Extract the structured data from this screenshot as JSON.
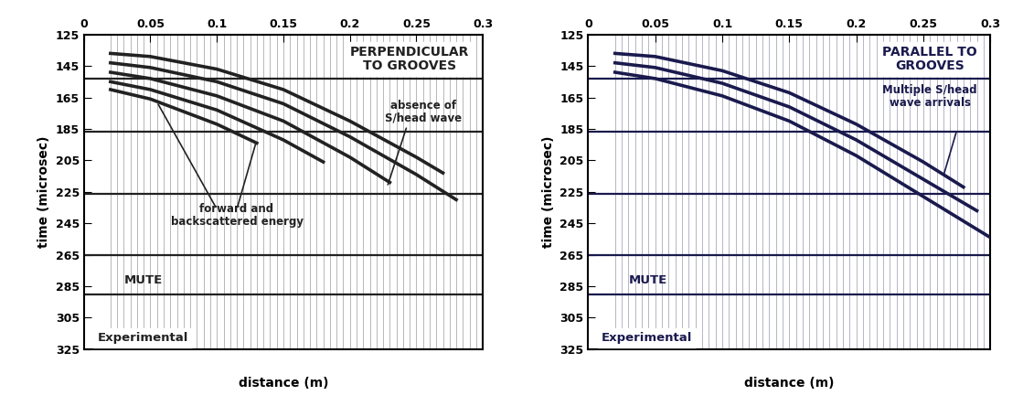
{
  "chart_data": [
    {
      "type": "line",
      "xlabel": "distance (m)",
      "ylabel": "time (microsec)",
      "xlim": [
        0,
        0.3
      ],
      "xticks": [
        0,
        0.05,
        0.1,
        0.15,
        0.2,
        0.25,
        0.3
      ],
      "ylim": [
        325,
        125
      ],
      "yticks": [
        125,
        145,
        165,
        185,
        205,
        225,
        245,
        265,
        285,
        305,
        325
      ],
      "color": "#222222",
      "traces": [
        0.02,
        0.025,
        0.03,
        0.035,
        0.04,
        0.045,
        0.05,
        0.055,
        0.06,
        0.065,
        0.07,
        0.075,
        0.08,
        0.085,
        0.09,
        0.095,
        0.1,
        0.105,
        0.11,
        0.115,
        0.12,
        0.125,
        0.13,
        0.135,
        0.14,
        0.145,
        0.15,
        0.155,
        0.16,
        0.165,
        0.17,
        0.175,
        0.18,
        0.185,
        0.19,
        0.195,
        0.2,
        0.205,
        0.21,
        0.215,
        0.22,
        0.225,
        0.23,
        0.235,
        0.24,
        0.245,
        0.25,
        0.255,
        0.26,
        0.265,
        0.27,
        0.275,
        0.28,
        0.285,
        0.29,
        0.295,
        0.3
      ],
      "reference_lines": [
        153,
        187,
        226,
        265,
        290
      ],
      "series": [
        {
          "x": [
            0.02,
            0.05,
            0.1,
            0.15,
            0.2,
            0.25,
            0.27
          ],
          "values": [
            137,
            139,
            147,
            160,
            180,
            203,
            213
          ]
        },
        {
          "x": [
            0.02,
            0.05,
            0.1,
            0.15,
            0.2,
            0.25,
            0.28
          ],
          "values": [
            143,
            146,
            155,
            169,
            190,
            214,
            230
          ]
        },
        {
          "x": [
            0.02,
            0.05,
            0.1,
            0.15,
            0.2,
            0.23
          ],
          "values": [
            149,
            153,
            164,
            180,
            203,
            219
          ]
        },
        {
          "x": [
            0.02,
            0.05,
            0.1,
            0.15,
            0.18
          ],
          "values": [
            155,
            160,
            173,
            192,
            206
          ]
        },
        {
          "x": [
            0.02,
            0.05,
            0.1,
            0.13
          ],
          "values": [
            160,
            166,
            182,
            194
          ]
        }
      ],
      "annotations": [
        {
          "text": "PERPENDICULAR\nTO GROOVES"
        },
        {
          "text": "absence of\nS/head wave"
        },
        {
          "text": "forward and\nbackscattered energy"
        },
        {
          "text": "MUTE"
        },
        {
          "text": "Experimental"
        }
      ]
    },
    {
      "type": "line",
      "xlabel": "distance (m)",
      "ylabel": "time (microsec)",
      "xlim": [
        0,
        0.3
      ],
      "xticks": [
        0,
        0.05,
        0.1,
        0.15,
        0.2,
        0.25,
        0.3
      ],
      "ylim": [
        325,
        125
      ],
      "yticks": [
        125,
        145,
        165,
        185,
        205,
        225,
        245,
        265,
        285,
        305,
        325
      ],
      "color": "#1a1a4e",
      "traces": [
        0.02,
        0.025,
        0.03,
        0.035,
        0.04,
        0.045,
        0.05,
        0.055,
        0.06,
        0.065,
        0.07,
        0.075,
        0.08,
        0.085,
        0.09,
        0.095,
        0.1,
        0.105,
        0.11,
        0.115,
        0.12,
        0.125,
        0.13,
        0.135,
        0.14,
        0.145,
        0.15,
        0.155,
        0.16,
        0.165,
        0.17,
        0.175,
        0.18,
        0.185,
        0.19,
        0.195,
        0.2,
        0.205,
        0.21,
        0.215,
        0.22,
        0.225,
        0.23,
        0.235,
        0.24,
        0.245,
        0.25,
        0.255,
        0.26,
        0.265,
        0.27,
        0.275,
        0.28,
        0.285,
        0.29,
        0.295,
        0.3
      ],
      "reference_lines": [
        153,
        187,
        226,
        265,
        290
      ],
      "series": [
        {
          "x": [
            0.02,
            0.05,
            0.1,
            0.15,
            0.2,
            0.25,
            0.28
          ],
          "values": [
            137,
            139,
            148,
            162,
            182,
            206,
            222
          ]
        },
        {
          "x": [
            0.02,
            0.05,
            0.1,
            0.15,
            0.2,
            0.25,
            0.29
          ],
          "values": [
            143,
            146,
            156,
            171,
            192,
            217,
            237
          ]
        },
        {
          "x": [
            0.02,
            0.05,
            0.1,
            0.15,
            0.2,
            0.25,
            0.3
          ],
          "values": [
            149,
            153,
            164,
            180,
            202,
            228,
            254
          ]
        }
      ],
      "annotations": [
        {
          "text": "PARALLEL TO\nGROOVES"
        },
        {
          "text": "Multiple S/head\nwave arrivals"
        },
        {
          "text": "MUTE"
        },
        {
          "text": "Experimental"
        }
      ]
    }
  ]
}
